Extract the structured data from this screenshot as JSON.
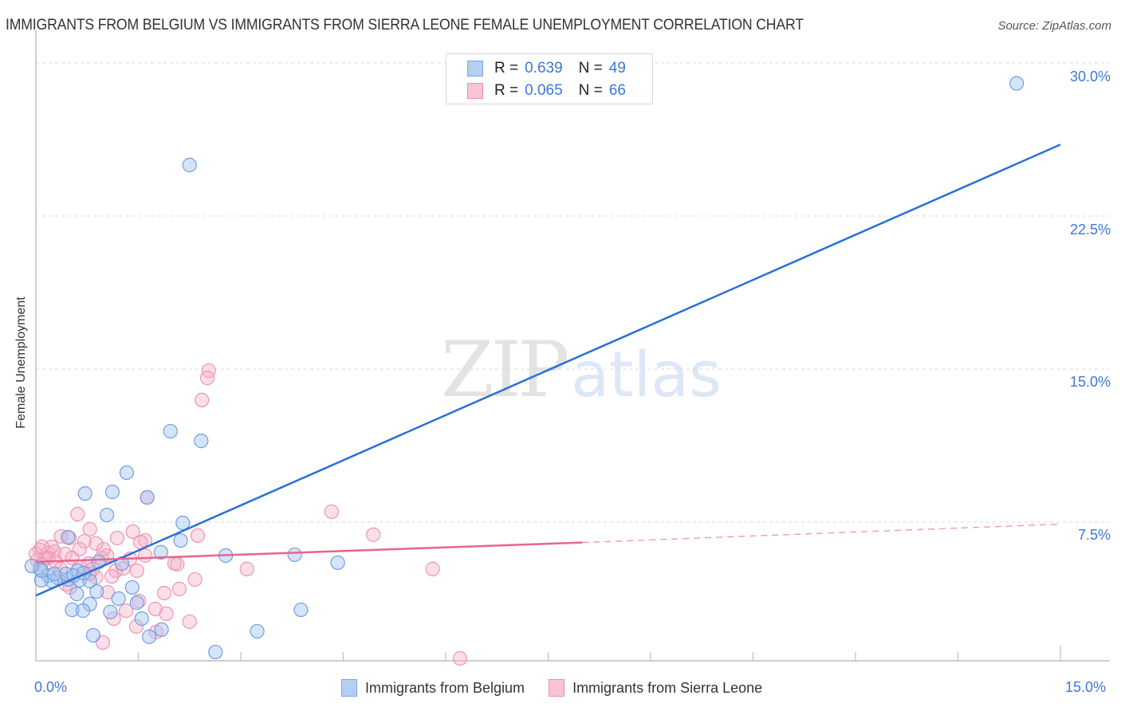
{
  "header": {
    "title": "IMMIGRANTS FROM BELGIUM VS IMMIGRANTS FROM SIERRA LEONE FEMALE UNEMPLOYMENT CORRELATION CHART",
    "source": "Source: ZipAtlas.com"
  },
  "watermark": {
    "zip": "ZIP",
    "atlas": "atlas"
  },
  "legend_top": {
    "rows": [
      {
        "r_label": "R =",
        "r_value": "0.639",
        "n_label": "N =",
        "n_value": "49",
        "color": "#b5cff2",
        "border": "#7aa6e3"
      },
      {
        "r_label": "R =",
        "r_value": "0.065",
        "n_label": "N =",
        "n_value": "66",
        "color": "#f8c3d3",
        "border": "#ec8fab"
      }
    ]
  },
  "legend_bottom": {
    "items": [
      {
        "label": "Immigrants from Belgium",
        "color": "#b5cff2",
        "border": "#7aa6e3"
      },
      {
        "label": "Immigrants from Sierra Leone",
        "color": "#f8c3d3",
        "border": "#ec8fab"
      }
    ]
  },
  "axes": {
    "ylabel": "Female Unemployment",
    "y_ticks": [
      "30.0%",
      "22.5%",
      "15.0%",
      "7.5%"
    ],
    "x_ticks": [
      "0.0%",
      "15.0%"
    ]
  },
  "colors": {
    "blue": "#2a6fd6",
    "blue_fill": "rgba(165,196,240,0.45)",
    "blue_stroke": "#6f9fe0",
    "pink": "#e8648e",
    "pink_fill": "rgba(246,174,197,0.40)",
    "pink_stroke": "#ee94b1",
    "tick_text": "#3d78d8"
  },
  "chart_data": {
    "type": "scatter",
    "title": "IMMIGRANTS FROM BELGIUM VS IMMIGRANTS FROM SIERRA LEONE FEMALE UNEMPLOYMENT CORRELATION CHART",
    "xlabel": "",
    "ylabel": "Female Unemployment",
    "xlim": [
      0,
      15
    ],
    "ylim": [
      0,
      30
    ],
    "x_unit": "%",
    "y_unit": "%",
    "y_ticks": [
      7.5,
      15.0,
      22.5,
      30.0
    ],
    "x_ticks_labeled": [
      0.0,
      15.0
    ],
    "grid": "horizontal dashed",
    "legend_position": "top-center and bottom",
    "series": [
      {
        "name": "Immigrants from Belgium",
        "R": 0.639,
        "N": 49,
        "trendline": {
          "x": [
            0,
            15
          ],
          "y": [
            3.9,
            26.0
          ]
        },
        "points": [
          [
            14.36,
            29.0
          ],
          [
            2.25,
            25.0
          ],
          [
            1.97,
            11.95
          ],
          [
            2.42,
            11.48
          ],
          [
            1.33,
            9.92
          ],
          [
            0.72,
            8.9
          ],
          [
            1.12,
            8.98
          ],
          [
            1.63,
            8.71
          ],
          [
            1.04,
            7.85
          ],
          [
            2.15,
            7.46
          ],
          [
            0.47,
            6.76
          ],
          [
            2.12,
            6.6
          ],
          [
            1.83,
            6.02
          ],
          [
            2.78,
            5.86
          ],
          [
            3.79,
            5.9
          ],
          [
            4.42,
            5.51
          ],
          [
            1.26,
            5.47
          ],
          [
            0.92,
            5.55
          ],
          [
            0.06,
            5.2
          ],
          [
            0.61,
            5.12
          ],
          [
            0.18,
            4.88
          ],
          [
            0.32,
            4.77
          ],
          [
            0.47,
            4.69
          ],
          [
            0.64,
            4.65
          ],
          [
            0.23,
            4.61
          ],
          [
            0.08,
            4.65
          ],
          [
            0.44,
            4.96
          ],
          [
            0.79,
            4.61
          ],
          [
            0.6,
            3.98
          ],
          [
            0.89,
            4.1
          ],
          [
            1.21,
            3.75
          ],
          [
            1.48,
            3.55
          ],
          [
            0.79,
            3.48
          ],
          [
            0.53,
            3.2
          ],
          [
            0.69,
            3.16
          ],
          [
            1.09,
            3.09
          ],
          [
            3.88,
            3.2
          ],
          [
            1.55,
            2.77
          ],
          [
            0.84,
            1.95
          ],
          [
            1.66,
            1.88
          ],
          [
            1.84,
            2.23
          ],
          [
            3.24,
            2.15
          ],
          [
            2.63,
            1.13
          ],
          [
            0.27,
            4.96
          ],
          [
            0.08,
            5.12
          ],
          [
            0.55,
            4.88
          ],
          [
            0.7,
            5.0
          ],
          [
            1.41,
            4.3
          ],
          [
            -0.06,
            5.35
          ]
        ]
      },
      {
        "name": "Immigrants from Sierra Leone",
        "R": 0.065,
        "N": 66,
        "trendline": {
          "x": [
            0,
            8.0
          ],
          "y": [
            5.55,
            6.5
          ],
          "dashed_extension": {
            "x": [
              8.0,
              15
            ],
            "y": [
              6.5,
              7.4
            ]
          }
        },
        "points": [
          [
            2.53,
            14.92
          ],
          [
            2.51,
            14.57
          ],
          [
            2.43,
            13.48
          ],
          [
            1.63,
            8.71
          ],
          [
            4.33,
            8.01
          ],
          [
            0.61,
            7.89
          ],
          [
            1.42,
            7.03
          ],
          [
            4.94,
            6.88
          ],
          [
            2.37,
            6.84
          ],
          [
            0.79,
            7.15
          ],
          [
            0.37,
            6.8
          ],
          [
            0.49,
            6.72
          ],
          [
            0.71,
            6.56
          ],
          [
            1.19,
            6.72
          ],
          [
            1.6,
            6.6
          ],
          [
            1.04,
            5.86
          ],
          [
            0.96,
            5.74
          ],
          [
            0.06,
            6.13
          ],
          [
            0.18,
            5.98
          ],
          [
            0.27,
            6.05
          ],
          [
            0.14,
            5.74
          ],
          [
            0.02,
            5.63
          ],
          [
            0.77,
            5.47
          ],
          [
            3.09,
            5.2
          ],
          [
            2.03,
            5.47
          ],
          [
            2.07,
            5.43
          ],
          [
            5.81,
            5.2
          ],
          [
            2.33,
            4.69
          ],
          [
            1.38,
            5.7
          ],
          [
            1.48,
            5.12
          ],
          [
            1.17,
            5.12
          ],
          [
            0.64,
            5.31
          ],
          [
            0.88,
            4.8
          ],
          [
            1.05,
            4.06
          ],
          [
            1.88,
            4.02
          ],
          [
            0.44,
            4.45
          ],
          [
            0.5,
            4.3
          ],
          [
            1.51,
            3.63
          ],
          [
            1.32,
            3.16
          ],
          [
            1.75,
            3.24
          ],
          [
            1.91,
            3.01
          ],
          [
            1.14,
            2.77
          ],
          [
            2.25,
            2.62
          ],
          [
            1.47,
            2.38
          ],
          [
            0.98,
            1.6
          ],
          [
            6.21,
            0.82
          ],
          [
            0.18,
            5.74
          ],
          [
            0.29,
            5.55
          ],
          [
            0.43,
            5.94
          ],
          [
            0.08,
            5.43
          ],
          [
            1.28,
            5.23
          ],
          [
            0.99,
            6.17
          ],
          [
            0.64,
            6.17
          ],
          [
            0.0,
            5.94
          ],
          [
            0.23,
            6.29
          ],
          [
            0.83,
            5.2
          ],
          [
            0.53,
            5.74
          ],
          [
            1.11,
            4.84
          ],
          [
            1.6,
            5.86
          ],
          [
            2.1,
            4.22
          ],
          [
            1.76,
            2.11
          ],
          [
            0.36,
            5.2
          ],
          [
            0.78,
            4.96
          ],
          [
            1.53,
            6.52
          ],
          [
            0.09,
            6.29
          ],
          [
            0.88,
            6.45
          ]
        ]
      }
    ]
  }
}
